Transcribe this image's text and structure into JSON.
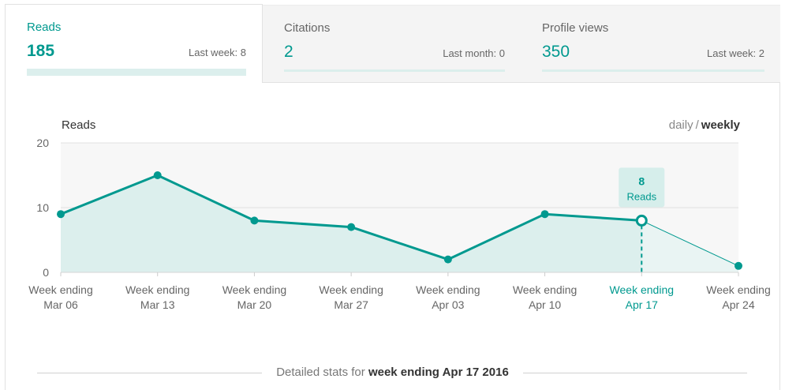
{
  "tabs": [
    {
      "label": "Reads",
      "value": "185",
      "sub": "Last week: 8"
    },
    {
      "label": "Citations",
      "value": "2",
      "sub": "Last month: 0"
    },
    {
      "label": "Profile views",
      "value": "350",
      "sub": "Last week: 2"
    }
  ],
  "chart_header": {
    "title": "Reads",
    "toggle_daily": "daily",
    "toggle_sep": "/",
    "toggle_weekly": "weekly"
  },
  "colors": {
    "accent": "#00998f",
    "area": "#dcefed",
    "plot_bg": "#f7f7f7"
  },
  "chart_data": {
    "type": "line",
    "title": "Reads",
    "categories": [
      [
        "Week ending",
        "Mar 06"
      ],
      [
        "Week ending",
        "Mar 13"
      ],
      [
        "Week ending",
        "Mar 20"
      ],
      [
        "Week ending",
        "Mar 27"
      ],
      [
        "Week ending",
        "Apr 03"
      ],
      [
        "Week ending",
        "Apr 10"
      ],
      [
        "Week ending",
        "Apr 17"
      ],
      [
        "Week ending",
        "Apr 24"
      ]
    ],
    "values": [
      9,
      15,
      8,
      7,
      2,
      9,
      8,
      1
    ],
    "ylim": [
      0,
      20
    ],
    "yticks": [
      0,
      10,
      20
    ],
    "grid": true,
    "selected_index": 6,
    "tooltip": {
      "value": "8",
      "label": "Reads"
    }
  },
  "footer": {
    "prefix": "Detailed stats for",
    "period": "week ending Apr 17 2016"
  }
}
